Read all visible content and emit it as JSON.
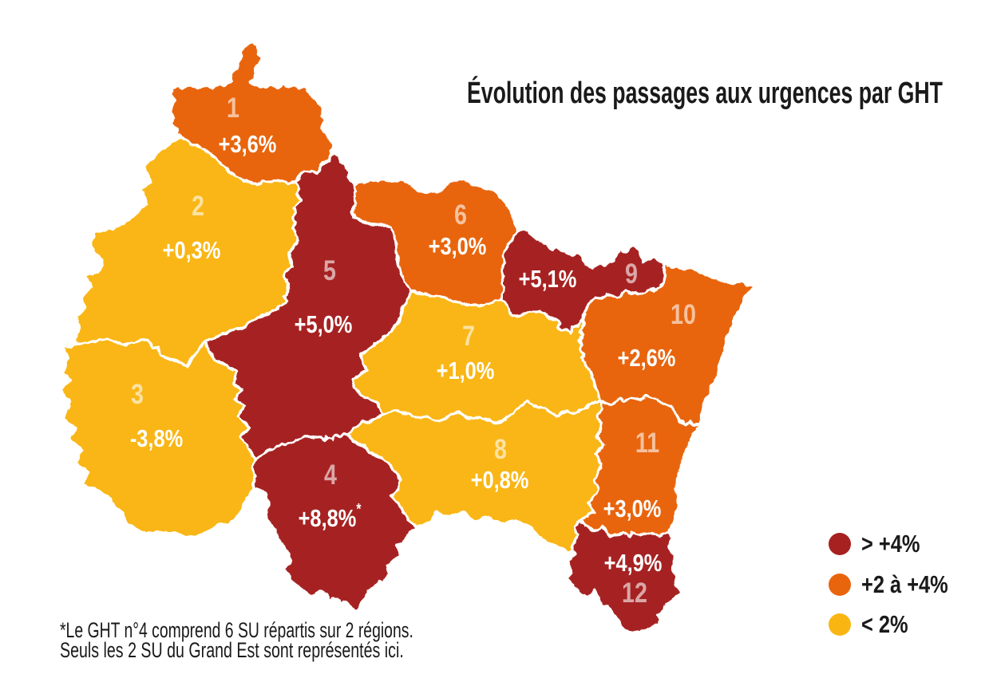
{
  "title": "Évolution des passages aux urgences par GHT",
  "footnote": {
    "line1": "*Le GHT n°4 comprend 6 SU répartis sur 2 régions.",
    "line2": "Seuls les 2 SU du Grand Est sont représentés ici."
  },
  "colors": {
    "red": "#A62120",
    "orange": "#E8650E",
    "yellow": "#F9B612",
    "text": "#1A1A1A",
    "value_text": "#FFFFFF",
    "number_tint": "rgba(255,255,255,0.6)",
    "boundary": "#FFFFFF"
  },
  "legend": {
    "items": [
      {
        "label": "> +4%",
        "color_key": "red"
      },
      {
        "label": "+2 à +4%",
        "color_key": "orange"
      },
      {
        "label": "< 2%",
        "color_key": "yellow"
      }
    ]
  },
  "map": {
    "regions": [
      {
        "id": 1,
        "number": "1",
        "value": "+3,6%",
        "sup": "",
        "color_key": "orange"
      },
      {
        "id": 2,
        "number": "2",
        "value": "+0,3%",
        "sup": "",
        "color_key": "yellow"
      },
      {
        "id": 3,
        "number": "3",
        "value": "-3,8%",
        "sup": "",
        "color_key": "yellow"
      },
      {
        "id": 4,
        "number": "4",
        "value": "+8,8%",
        "sup": "*",
        "color_key": "red"
      },
      {
        "id": 5,
        "number": "5",
        "value": "+5,0%",
        "sup": "",
        "color_key": "red"
      },
      {
        "id": 6,
        "number": "6",
        "value": "+3,0%",
        "sup": "",
        "color_key": "orange"
      },
      {
        "id": 7,
        "number": "7",
        "value": "+1,0%",
        "sup": "",
        "color_key": "yellow"
      },
      {
        "id": 8,
        "number": "8",
        "value": "+0,8%",
        "sup": "",
        "color_key": "yellow"
      },
      {
        "id": 9,
        "number": "9",
        "value": "+5,1%",
        "sup": "",
        "color_key": "red"
      },
      {
        "id": 10,
        "number": "10",
        "value": "+2,6%",
        "sup": "",
        "color_key": "orange"
      },
      {
        "id": 11,
        "number": "11",
        "value": "+3,0%",
        "sup": "",
        "color_key": "orange"
      },
      {
        "id": 12,
        "number": "12",
        "value": "+4,9%",
        "sup": "",
        "color_key": "red"
      }
    ]
  },
  "chart_data": {
    "type": "choropleth_map",
    "title": "Évolution des passages aux urgences par GHT",
    "subject": "GHT territories of the Grand Est region, France",
    "unit": "percent evolution of emergency department visits",
    "legend_position": "bottom-right",
    "categories": [
      {
        "label": "> +4%",
        "color": "#A62120"
      },
      {
        "label": "+2 à +4%",
        "color": "#E8650E"
      },
      {
        "label": "< 2%",
        "color": "#F9B612"
      }
    ],
    "regions": [
      {
        "ght": 1,
        "value": 3.6,
        "value_label": "+3,6%",
        "category": "+2 à +4%"
      },
      {
        "ght": 2,
        "value": 0.3,
        "value_label": "+0,3%",
        "category": "< 2%"
      },
      {
        "ght": 3,
        "value": -3.8,
        "value_label": "-3,8%",
        "category": "< 2%"
      },
      {
        "ght": 4,
        "value": 8.8,
        "value_label": "+8,8%*",
        "category": "> +4%"
      },
      {
        "ght": 5,
        "value": 5.0,
        "value_label": "+5,0%",
        "category": "> +4%"
      },
      {
        "ght": 6,
        "value": 3.0,
        "value_label": "+3,0%",
        "category": "+2 à +4%"
      },
      {
        "ght": 7,
        "value": 1.0,
        "value_label": "+1,0%",
        "category": "< 2%"
      },
      {
        "ght": 8,
        "value": 0.8,
        "value_label": "+0,8%",
        "category": "< 2%"
      },
      {
        "ght": 9,
        "value": 5.1,
        "value_label": "+5,1%",
        "category": "> +4%"
      },
      {
        "ght": 10,
        "value": 2.6,
        "value_label": "+2,6%",
        "category": "+2 à +4%"
      },
      {
        "ght": 11,
        "value": 3.0,
        "value_label": "+3,0%",
        "category": "+2 à +4%"
      },
      {
        "ght": 12,
        "value": 4.9,
        "value_label": "+4,9%",
        "category": "> +4%"
      }
    ],
    "footnote": "*Le GHT n°4 comprend 6 SU répartis sur 2 régions. Seuls les 2 SU du Grand Est sont représentés ici."
  }
}
